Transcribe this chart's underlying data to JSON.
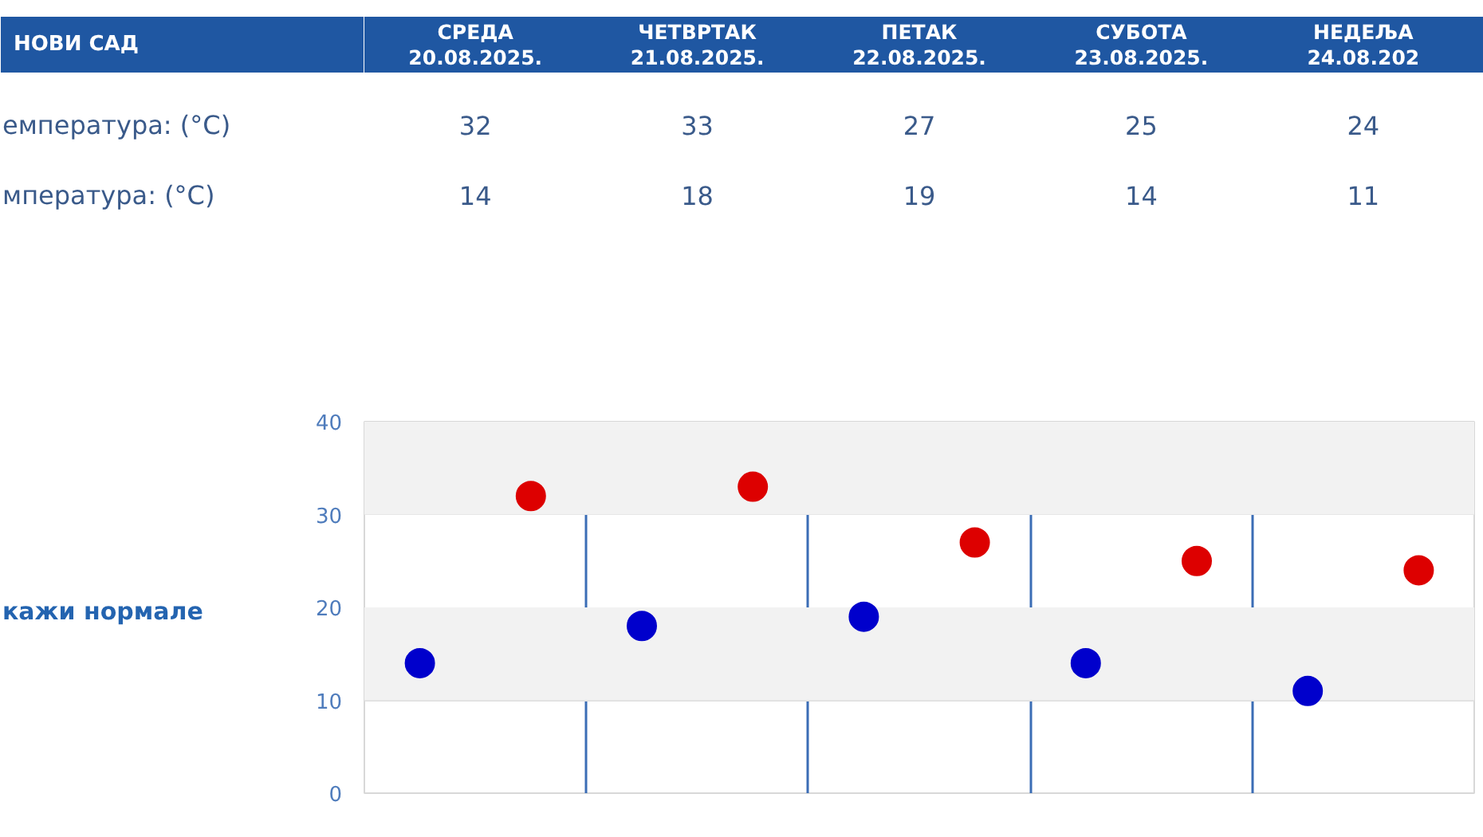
{
  "chart_data": {
    "type": "scatter",
    "title": "НОВИ САД",
    "categories": [
      null,
      null,
      null,
      null,
      null
    ],
    "series": [
      {
        "color": "#dd0000",
        "values": [
          32,
          33,
          27,
          25,
          24
        ]
      },
      {
        "color": "#0000cc",
        "values": [
          14,
          18,
          19,
          14,
          11
        ]
      }
    ],
    "ylim": [
      0,
      40
    ],
    "yticks": [
      0,
      10,
      20,
      30,
      40
    ],
    "grid": true,
    "tick_labels": "y",
    "bands": [
      {
        "axis": "y",
        "from": 10,
        "to": 20,
        "color": "#f2f2f2"
      },
      {
        "axis": "y",
        "from": 30,
        "to": 40,
        "color": "#f2f2f2"
      }
    ],
    "marker": "circle",
    "data_labels": true,
    "annotations": [
      "СРЕДА 20.08.2025.",
      "ЧЕТВРТАК 21.08.2025.",
      "ПЕТАК 22.08.2025.",
      "СУБОТА 23.08.2025.",
      "НЕДЕЉА 24.08.202",
      "емпература: (°C)",
      "мпература: (°C)",
      "кажи нормале"
    ]
  }
}
